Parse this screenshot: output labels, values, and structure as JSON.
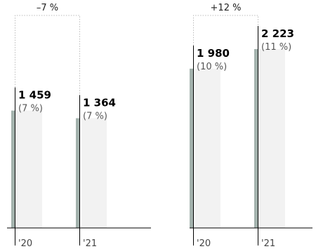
{
  "colors": {
    "bar": "#a3b2ad",
    "shadow": "#f2f2f2",
    "axis": "#000000",
    "bracket": "#bbbbbb"
  },
  "chart_data": [
    {
      "type": "bar",
      "categories": [
        "'20",
        "'21"
      ],
      "values": [
        1459,
        1364
      ],
      "value_labels": [
        "1 459",
        "1 364"
      ],
      "percent_labels": [
        "(7 %)",
        "(7 %)"
      ],
      "change_label": "–7 %",
      "ylim": [
        0,
        2500
      ],
      "grid": false,
      "legend": "none"
    },
    {
      "type": "bar",
      "categories": [
        "'20",
        "'21"
      ],
      "values": [
        1980,
        2223
      ],
      "value_labels": [
        "1 980",
        "2 223"
      ],
      "percent_labels": [
        "(10 %)",
        "(11 %)"
      ],
      "change_label": "+12 %",
      "ylim": [
        0,
        2500
      ],
      "grid": false,
      "legend": "none"
    }
  ]
}
